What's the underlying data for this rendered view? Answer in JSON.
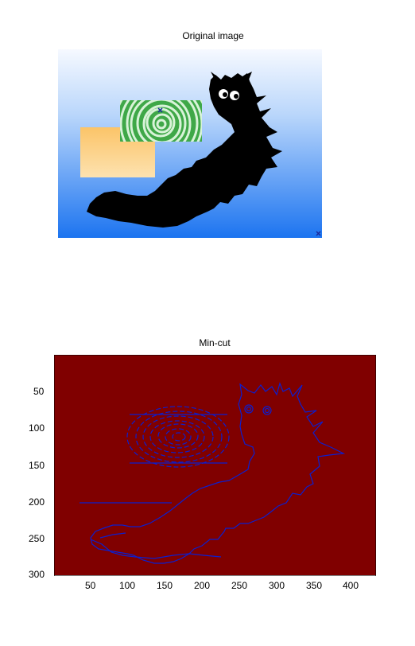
{
  "top_figure": {
    "title": "Original image"
  },
  "bottom_figure": {
    "title": "Min-cut",
    "x_ticks": [
      "50",
      "100",
      "150",
      "200",
      "250",
      "300",
      "350",
      "400"
    ],
    "y_ticks": [
      "50",
      "100",
      "150",
      "200",
      "250",
      "300"
    ]
  },
  "colors": {
    "sky_top": "#f4f8ff",
    "sky_bottom": "#1a73f0",
    "caterpillar": "#000000",
    "spiral_green": "#44a84a",
    "orange_rect": "#fbc870",
    "mincut_bg": "#800000",
    "contour": "#0b1fd0"
  }
}
